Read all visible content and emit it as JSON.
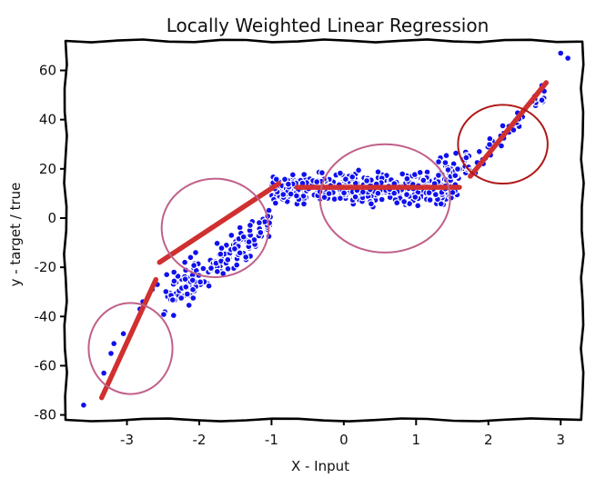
{
  "chart_data": {
    "type": "scatter",
    "title": "Locally Weighted Linear Regression",
    "xlabel": "X - Input",
    "ylabel": "y - target / true",
    "xlim": [
      -3.85,
      3.3
    ],
    "ylim": [
      -82,
      72
    ],
    "xticks": [
      -3,
      -2,
      -1,
      0,
      1,
      2,
      3
    ],
    "yticks": [
      -80,
      -60,
      -40,
      -20,
      0,
      20,
      40,
      60
    ],
    "grid": false,
    "legend": "none",
    "colors": {
      "points": "#1010ee",
      "fit": "#d03030",
      "circle_pink": "#c0608a",
      "circle_red": "#b01818"
    },
    "sample_points": [
      [
        -3.6,
        -76
      ],
      [
        -3.32,
        -63
      ],
      [
        -3.22,
        -55
      ],
      [
        -3.18,
        -51
      ],
      [
        -3.05,
        -47
      ],
      [
        -2.82,
        -37
      ],
      [
        -2.78,
        -34
      ],
      [
        -2.65,
        -29
      ],
      [
        -2.58,
        -27
      ],
      [
        -2.45,
        -23
      ],
      [
        -2.35,
        -22
      ],
      [
        -2.2,
        -18
      ],
      [
        -2.12,
        -16
      ],
      [
        -2.05,
        -14
      ],
      [
        3.0,
        67
      ],
      [
        3.1,
        65
      ]
    ],
    "scatter_segments": [
      {
        "x_start": -2.5,
        "x_end": -1.0,
        "slope": 22,
        "intercept": 20,
        "noise": 6,
        "count": 170
      },
      {
        "x_start": -1.0,
        "x_end": 1.6,
        "slope": 0,
        "intercept": 12,
        "noise": 5,
        "count": 470
      },
      {
        "x_start": 1.3,
        "x_end": 1.75,
        "slope": 12,
        "intercept": 2,
        "noise": 5,
        "count": 40
      },
      {
        "x_start": 1.75,
        "x_end": 2.8,
        "slope": 30,
        "intercept": -33,
        "noise": 4,
        "count": 45
      }
    ],
    "fit_segments": [
      {
        "x": [
          -3.35,
          -2.6
        ],
        "y": [
          -73,
          -25
        ]
      },
      {
        "x": [
          -2.55,
          -0.9
        ],
        "y": [
          -18,
          14
        ]
      },
      {
        "x": [
          -0.65,
          1.6
        ],
        "y": [
          12.5,
          12.5
        ]
      },
      {
        "x": [
          1.75,
          2.8
        ],
        "y": [
          17,
          55
        ]
      }
    ],
    "circles": [
      {
        "cx": -2.95,
        "cy": -53,
        "rx": 0.58,
        "ry": 18.5,
        "style": "pink"
      },
      {
        "cx": -1.78,
        "cy": -4,
        "rx": 0.74,
        "ry": 20,
        "style": "pink"
      },
      {
        "cx": 0.57,
        "cy": 8,
        "rx": 0.9,
        "ry": 22,
        "style": "pink"
      },
      {
        "cx": 2.2,
        "cy": 30,
        "rx": 0.62,
        "ry": 16,
        "style": "red"
      }
    ]
  }
}
